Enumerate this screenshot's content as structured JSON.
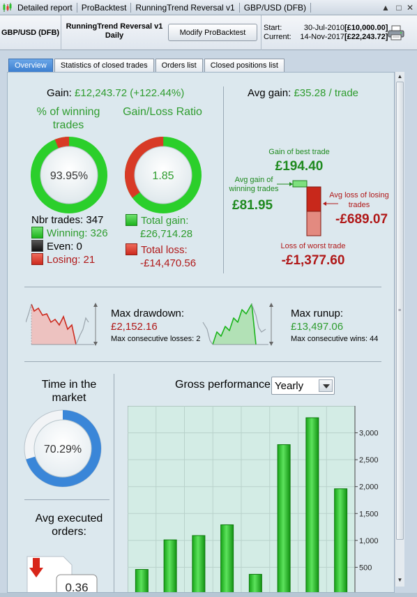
{
  "titlebar": {
    "segments": [
      "Detailed report",
      "ProBacktest",
      "RunningTrend Reversal v1",
      "GBP/USD (DFB)"
    ]
  },
  "header": {
    "instrument": "GBP/USD (DFB)",
    "strategy_name": "RunningTrend Reversal v1",
    "timeframe": "Daily",
    "modify_button": "Modify ProBacktest",
    "start_label": "Start:",
    "start_date": "30-Jul-2010",
    "start_amount": "[£10,000.00]",
    "current_label": "Current:",
    "current_date": "14-Nov-2017",
    "current_amount": "[£22,243.72]"
  },
  "tabs": [
    {
      "label": "Overview",
      "active": true
    },
    {
      "label": "Statistics of closed trades",
      "active": false
    },
    {
      "label": "Orders list",
      "active": false
    },
    {
      "label": "Closed positions list",
      "active": false
    }
  ],
  "overview": {
    "gain_label": "Gain:",
    "gain_value": "£12,243.72 (+122.44%)",
    "winning_title": "% of winning trades",
    "winning_pct": "93.95%",
    "winning_fraction": 0.9395,
    "ratio_title": "Gain/Loss Ratio",
    "ratio_value": "1.85",
    "ratio_gain_fraction": 0.6486,
    "nbr_trades": "Nbr trades: 347",
    "winning": "Winning: 326",
    "even": "Even: 0",
    "losing": "Losing: 21",
    "total_gain_label": "Total gain:",
    "total_gain_value": "£26,714.28",
    "total_loss_label": "Total loss:",
    "total_loss_value": "-£14,470.56",
    "avg_gain_label": "Avg gain:",
    "avg_gain_value": "£35.28 / trade",
    "best_trade_label": "Gain of best trade",
    "best_trade_value": "£194.40",
    "avg_win_label": "Avg gain of winning trades",
    "avg_win_value": "£81.95",
    "avg_loss_label": "Avg loss of losing trades",
    "avg_loss_value": "-£689.07",
    "worst_trade_label": "Loss of worst trade",
    "worst_trade_value": "-£1,377.60",
    "max_drawdown_label": "Max drawdown:",
    "max_drawdown_value": "£2,152.16",
    "max_consec_losses": "Max consecutive losses: 2",
    "max_runup_label": "Max runup:",
    "max_runup_value": "£13,497.06",
    "max_consec_wins": "Max consecutive wins: 44",
    "time_in_market_title": "Time in the market",
    "time_in_market_value": "70.29%",
    "time_in_market_fraction": 0.7029,
    "avg_orders_title": "Avg executed orders:",
    "avg_orders_value": "0.36",
    "gross_perf_label": "Gross performance",
    "period_select": "Yearly"
  },
  "colors": {
    "gain_green": "#2e9c2e",
    "loss_red": "#b01818",
    "tab_active": "#3c7fd0",
    "panel_bg": "#dce8ee"
  },
  "icons": {
    "app": "candlestick-icon",
    "print": "printer-icon"
  },
  "chart_data": {
    "type": "bar",
    "title": "Gross performance",
    "categories": [
      "",
      "",
      "",
      "",
      "",
      "",
      "",
      ""
    ],
    "values": [
      460,
      1010,
      1090,
      1290,
      370,
      2780,
      3280,
      1960
    ],
    "ylim": [
      0,
      3500
    ],
    "yticks": [
      "500",
      "1,000",
      "1,500",
      "2,000",
      "2,500",
      "3,000"
    ],
    "grid": true
  }
}
